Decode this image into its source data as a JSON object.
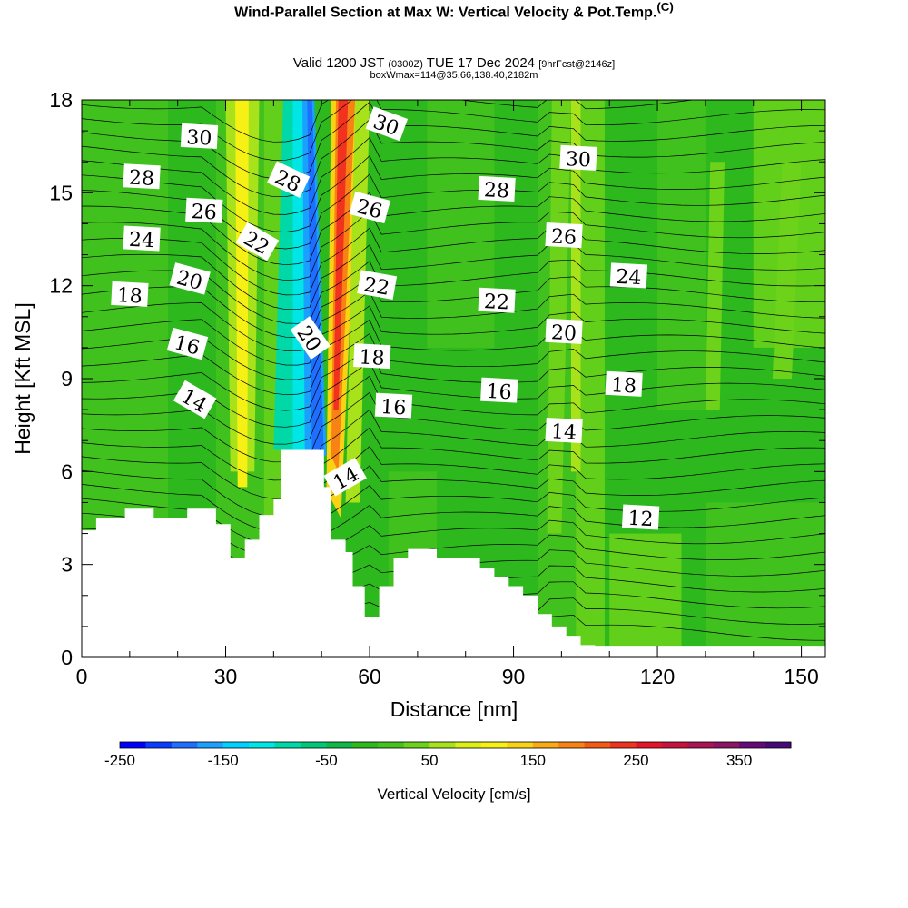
{
  "title": {
    "main": "Wind-Parallel Section at Max W: Vertical Velocity & Pot.Temp.",
    "copyright": "(C)",
    "valid_prefix": "Valid 1200 JST",
    "valid_utc": "(0300Z)",
    "valid_date": "TUE 17 Dec 2024",
    "forecast": "[9hrFcst@2146z]",
    "boxinfo": "boxWmax=114@35.66,138.40,2182m"
  },
  "chart_data": {
    "type": "heatmap",
    "xlabel": "Distance [nm]",
    "ylabel": "Height [Kft MSL]",
    "xlim": [
      0,
      155
    ],
    "ylim": [
      0,
      18
    ],
    "x_ticks": [
      0,
      30,
      60,
      90,
      120,
      150
    ],
    "y_ticks": [
      0,
      3,
      6,
      9,
      12,
      15,
      18
    ],
    "colorbar": {
      "label": "Vertical Velocity [cm/s]",
      "range": [
        -250,
        400
      ],
      "tick_values": [
        -250,
        -150,
        -50,
        50,
        150,
        250,
        350
      ],
      "tick_labels": [
        "-250",
        "-150",
        "-50",
        "50",
        "150",
        "250",
        "350"
      ],
      "colors": [
        "#0000ff",
        "#0a3cff",
        "#1e6eff",
        "#1aa0ff",
        "#00d0ff",
        "#00e6e6",
        "#00d8a8",
        "#00c878",
        "#10b848",
        "#2db81e",
        "#45c21e",
        "#6cd21a",
        "#a8e21a",
        "#dcf014",
        "#f6f014",
        "#fad214",
        "#faaa14",
        "#f88214",
        "#f55a14",
        "#f0321e",
        "#e61428",
        "#c8143c",
        "#aa1450",
        "#8c1464",
        "#640a78",
        "#460a78"
      ]
    },
    "contour_field": "Potential temperature (theta)",
    "contour_labels": [
      {
        "value": "30",
        "x": 24.5,
        "y": 16.8
      },
      {
        "value": "28",
        "x": 12.5,
        "y": 15.5
      },
      {
        "value": "26",
        "x": 25.5,
        "y": 14.4
      },
      {
        "value": "24",
        "x": 12.5,
        "y": 13.5
      },
      {
        "value": "20",
        "x": 22.5,
        "y": 12.2
      },
      {
        "value": "18",
        "x": 10,
        "y": 11.7
      },
      {
        "value": "16",
        "x": 22,
        "y": 10.1
      },
      {
        "value": "14",
        "x": 23.5,
        "y": 8.3
      },
      {
        "value": "28",
        "x": 43,
        "y": 15.4
      },
      {
        "value": "22",
        "x": 36.5,
        "y": 13.4
      },
      {
        "value": "20",
        "x": 47.5,
        "y": 10.3
      },
      {
        "value": "30",
        "x": 63.5,
        "y": 17.2
      },
      {
        "value": "26",
        "x": 60,
        "y": 14.5
      },
      {
        "value": "22",
        "x": 61.5,
        "y": 12.0
      },
      {
        "value": "18",
        "x": 60.5,
        "y": 9.7
      },
      {
        "value": "16",
        "x": 65,
        "y": 8.1
      },
      {
        "value": "14",
        "x": 55,
        "y": 5.8
      },
      {
        "value": "28",
        "x": 86.5,
        "y": 15.1
      },
      {
        "value": "22",
        "x": 86.5,
        "y": 11.5
      },
      {
        "value": "16",
        "x": 87,
        "y": 8.6
      },
      {
        "value": "30",
        "x": 103.5,
        "y": 16.1
      },
      {
        "value": "26",
        "x": 100.5,
        "y": 13.6
      },
      {
        "value": "20",
        "x": 100.5,
        "y": 10.5
      },
      {
        "value": "14",
        "x": 100.5,
        "y": 7.3
      },
      {
        "value": "24",
        "x": 114,
        "y": 12.3
      },
      {
        "value": "18",
        "x": 113,
        "y": 8.8
      },
      {
        "value": "12",
        "x": 116.5,
        "y": 4.5
      }
    ],
    "terrain_max_height_kft": 6.7
  }
}
